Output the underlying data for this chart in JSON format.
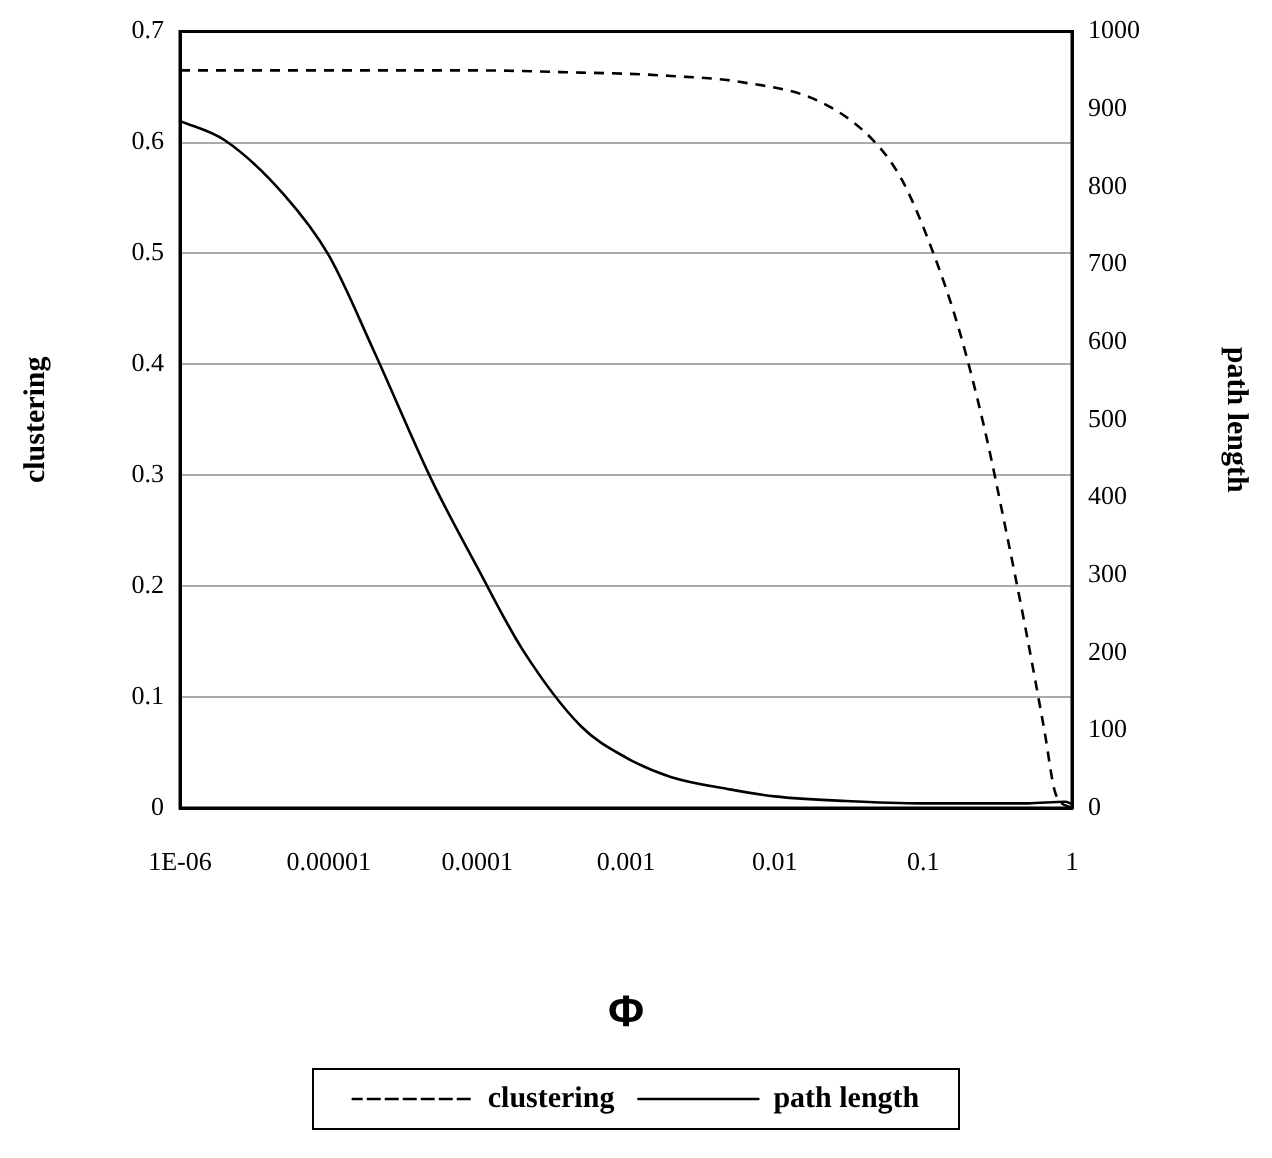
{
  "chart_data": {
    "type": "line",
    "xlabel": "Φ",
    "ylabel": "clustering",
    "y2label": "path length",
    "log": "x",
    "xlim": [
      1e-06,
      1
    ],
    "xticks": [
      {
        "value": 1e-06,
        "label": "1E-06"
      },
      {
        "value": 1e-05,
        "label": "0.00001"
      },
      0.0001,
      0.001,
      0.01,
      0.1,
      1
    ],
    "ylim": [
      0,
      0.7
    ],
    "yticks": [
      0,
      0.1,
      0.2,
      0.3,
      0.4,
      0.5,
      0.6,
      0.7
    ],
    "y2lim": [
      0,
      1000
    ],
    "y2ticks": [
      0,
      100,
      200,
      300,
      400,
      500,
      600,
      700,
      800,
      900,
      1000
    ],
    "grid": "y",
    "legend": "bottom",
    "marker": "none",
    "series": [
      {
        "name": "clustering",
        "color": "#000000",
        "line_style": "dashed",
        "x": [
          1e-06,
          0.0001,
          0.0005,
          0.001,
          0.002,
          0.0056,
          0.02,
          0.046,
          0.072,
          0.117,
          0.175,
          0.26,
          0.36,
          0.49,
          0.65,
          0.78,
          1
        ],
        "values": [
          0.665,
          0.665,
          0.663,
          0.662,
          0.66,
          0.655,
          0.637,
          0.602,
          0.566,
          0.5,
          0.43,
          0.34,
          0.25,
          0.16,
          0.071,
          0.012,
          0
        ]
      },
      {
        "name": "path length",
        "color": "#000000",
        "line_style": "solid",
        "axis": "y2",
        "x": [
          1e-06,
          2e-06,
          5e-06,
          1e-05,
          2e-05,
          5e-05,
          0.0001,
          0.0002,
          0.0005,
          0.001,
          0.002,
          0.005,
          0.01,
          0.03,
          0.1,
          0.5,
          0.9,
          1
        ],
        "values": [
          885,
          860,
          790,
          712,
          590,
          420,
          310,
          205,
          105,
          65,
          40,
          24,
          15,
          9,
          6,
          6,
          8,
          5
        ]
      }
    ]
  }
}
